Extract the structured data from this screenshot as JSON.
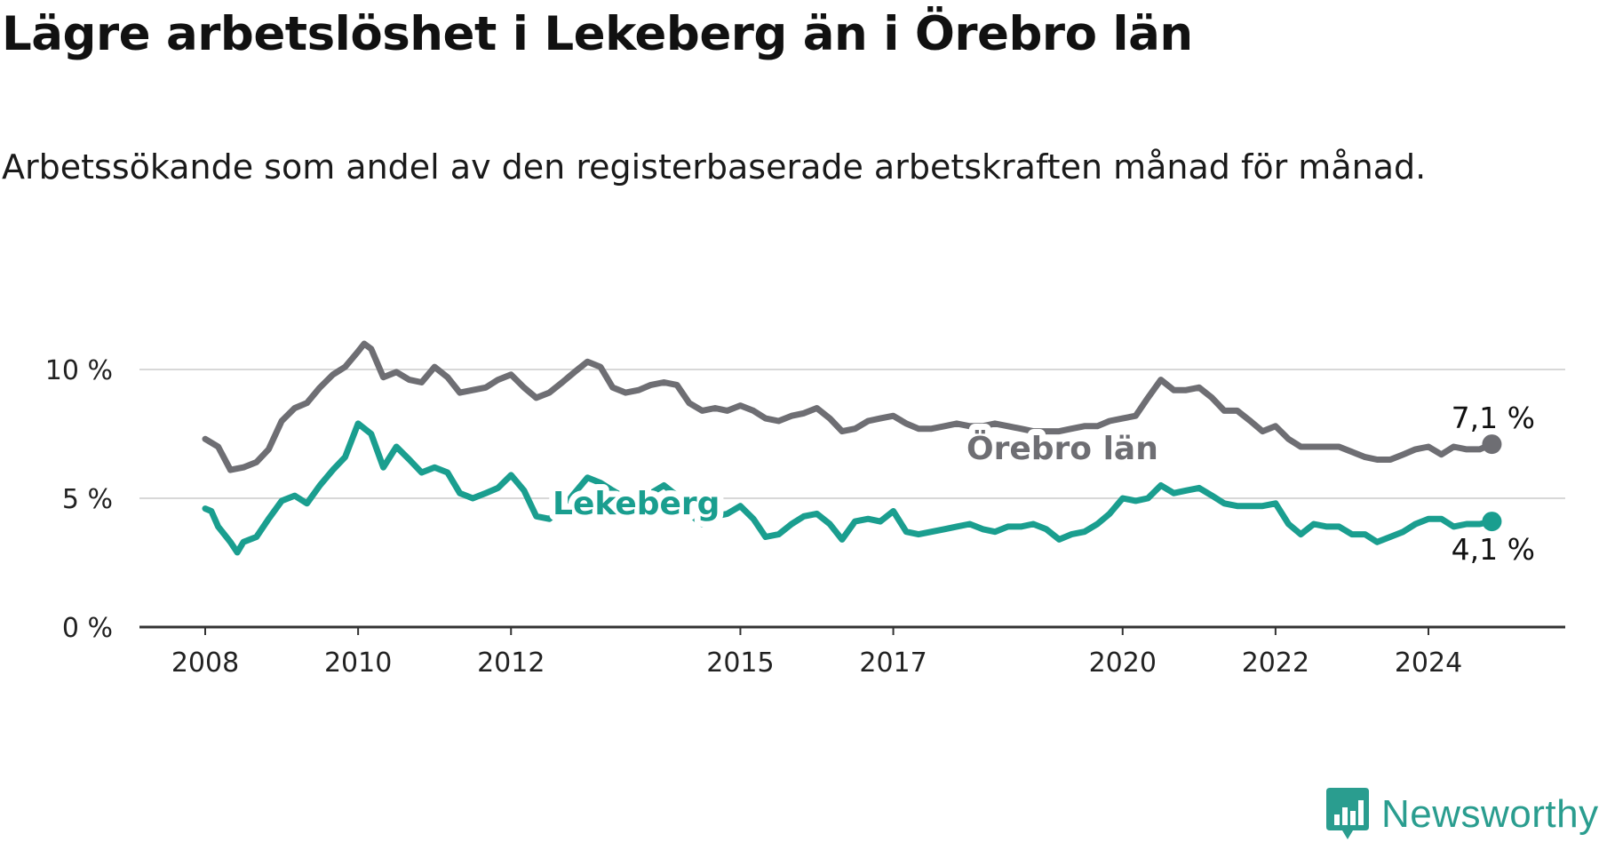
{
  "title": "Lägre arbetslöshet i Lekeberg än i Örebro län",
  "subtitle": "Arbetssökande som andel av den registerbaserade arbetskraften månad för månad.",
  "brand": "Newsworthy",
  "chart_data": {
    "type": "line",
    "title": "Lägre arbetslöshet i Lekeberg än i Örebro län",
    "subtitle": "Arbetssökande som andel av den registerbaserade arbetskraften månad för månad.",
    "xlabel": "",
    "ylabel": "",
    "ylim": [
      0,
      10.5
    ],
    "y_ticks": [
      0,
      5,
      10
    ],
    "y_tick_labels": [
      "0 %",
      "5 %",
      "10 %"
    ],
    "x_ticks": [
      2008,
      2010,
      2012,
      2015,
      2017,
      2020,
      2022,
      2024
    ],
    "x_tick_labels": [
      "2008",
      "2010",
      "2012",
      "2015",
      "2017",
      "2020",
      "2022",
      "2024"
    ],
    "grid": "horizontal",
    "legend": "inline labels",
    "series": [
      {
        "name": "Örebro län",
        "color": "#6e6e73",
        "end_label": "7,1 %",
        "points": [
          [
            2008.0,
            7.3
          ],
          [
            2008.17,
            7.0
          ],
          [
            2008.33,
            6.1
          ],
          [
            2008.5,
            6.2
          ],
          [
            2008.67,
            6.4
          ],
          [
            2008.83,
            6.9
          ],
          [
            2009.0,
            8.0
          ],
          [
            2009.17,
            8.5
          ],
          [
            2009.33,
            8.7
          ],
          [
            2009.5,
            9.3
          ],
          [
            2009.67,
            9.8
          ],
          [
            2009.83,
            10.1
          ],
          [
            2010.0,
            10.7
          ],
          [
            2010.08,
            11.0
          ],
          [
            2010.17,
            10.8
          ],
          [
            2010.33,
            9.7
          ],
          [
            2010.5,
            9.9
          ],
          [
            2010.67,
            9.6
          ],
          [
            2010.83,
            9.5
          ],
          [
            2011.0,
            10.1
          ],
          [
            2011.17,
            9.7
          ],
          [
            2011.33,
            9.1
          ],
          [
            2011.5,
            9.2
          ],
          [
            2011.67,
            9.3
          ],
          [
            2011.83,
            9.6
          ],
          [
            2012.0,
            9.8
          ],
          [
            2012.17,
            9.3
          ],
          [
            2012.33,
            8.9
          ],
          [
            2012.5,
            9.1
          ],
          [
            2012.67,
            9.5
          ],
          [
            2012.83,
            9.9
          ],
          [
            2013.0,
            10.3
          ],
          [
            2013.17,
            10.1
          ],
          [
            2013.33,
            9.3
          ],
          [
            2013.5,
            9.1
          ],
          [
            2013.67,
            9.2
          ],
          [
            2013.83,
            9.4
          ],
          [
            2014.0,
            9.5
          ],
          [
            2014.17,
            9.4
          ],
          [
            2014.33,
            8.7
          ],
          [
            2014.5,
            8.4
          ],
          [
            2014.67,
            8.5
          ],
          [
            2014.83,
            8.4
          ],
          [
            2015.0,
            8.6
          ],
          [
            2015.17,
            8.4
          ],
          [
            2015.33,
            8.1
          ],
          [
            2015.5,
            8.0
          ],
          [
            2015.67,
            8.2
          ],
          [
            2015.83,
            8.3
          ],
          [
            2016.0,
            8.5
          ],
          [
            2016.17,
            8.1
          ],
          [
            2016.33,
            7.6
          ],
          [
            2016.5,
            7.7
          ],
          [
            2016.67,
            8.0
          ],
          [
            2016.83,
            8.1
          ],
          [
            2017.0,
            8.2
          ],
          [
            2017.17,
            7.9
          ],
          [
            2017.33,
            7.7
          ],
          [
            2017.5,
            7.7
          ],
          [
            2017.67,
            7.8
          ],
          [
            2017.83,
            7.9
          ],
          [
            2018.0,
            7.8
          ],
          [
            2018.17,
            7.8
          ],
          [
            2018.33,
            7.9
          ],
          [
            2018.5,
            7.8
          ],
          [
            2018.67,
            7.7
          ],
          [
            2018.83,
            7.6
          ],
          [
            2019.0,
            7.6
          ],
          [
            2019.17,
            7.6
          ],
          [
            2019.33,
            7.7
          ],
          [
            2019.5,
            7.8
          ],
          [
            2019.67,
            7.8
          ],
          [
            2019.83,
            8.0
          ],
          [
            2020.0,
            8.1
          ],
          [
            2020.17,
            8.2
          ],
          [
            2020.33,
            8.9
          ],
          [
            2020.5,
            9.6
          ],
          [
            2020.67,
            9.2
          ],
          [
            2020.83,
            9.2
          ],
          [
            2021.0,
            9.3
          ],
          [
            2021.17,
            8.9
          ],
          [
            2021.33,
            8.4
          ],
          [
            2021.5,
            8.4
          ],
          [
            2021.67,
            8.0
          ],
          [
            2021.83,
            7.6
          ],
          [
            2022.0,
            7.8
          ],
          [
            2022.17,
            7.3
          ],
          [
            2022.33,
            7.0
          ],
          [
            2022.5,
            7.0
          ],
          [
            2022.67,
            7.0
          ],
          [
            2022.83,
            7.0
          ],
          [
            2023.0,
            6.8
          ],
          [
            2023.17,
            6.6
          ],
          [
            2023.33,
            6.5
          ],
          [
            2023.5,
            6.5
          ],
          [
            2023.67,
            6.7
          ],
          [
            2023.83,
            6.9
          ],
          [
            2024.0,
            7.0
          ],
          [
            2024.17,
            6.7
          ],
          [
            2024.33,
            7.0
          ],
          [
            2024.5,
            6.9
          ],
          [
            2024.67,
            6.9
          ],
          [
            2024.83,
            7.1
          ]
        ]
      },
      {
        "name": "Lekeberg",
        "color": "#1a9e8f",
        "end_label": "4,1 %",
        "points": [
          [
            2008.0,
            4.6
          ],
          [
            2008.08,
            4.5
          ],
          [
            2008.17,
            3.9
          ],
          [
            2008.33,
            3.3
          ],
          [
            2008.42,
            2.9
          ],
          [
            2008.5,
            3.3
          ],
          [
            2008.67,
            3.5
          ],
          [
            2008.83,
            4.2
          ],
          [
            2009.0,
            4.9
          ],
          [
            2009.17,
            5.1
          ],
          [
            2009.33,
            4.8
          ],
          [
            2009.5,
            5.5
          ],
          [
            2009.67,
            6.1
          ],
          [
            2009.83,
            6.6
          ],
          [
            2010.0,
            7.9
          ],
          [
            2010.17,
            7.5
          ],
          [
            2010.33,
            6.2
          ],
          [
            2010.5,
            7.0
          ],
          [
            2010.67,
            6.5
          ],
          [
            2010.83,
            6.0
          ],
          [
            2011.0,
            6.2
          ],
          [
            2011.17,
            6.0
          ],
          [
            2011.33,
            5.2
          ],
          [
            2011.5,
            5.0
          ],
          [
            2011.67,
            5.2
          ],
          [
            2011.83,
            5.4
          ],
          [
            2012.0,
            5.9
          ],
          [
            2012.17,
            5.3
          ],
          [
            2012.33,
            4.3
          ],
          [
            2012.5,
            4.2
          ],
          [
            2012.67,
            4.6
          ],
          [
            2012.83,
            5.2
          ],
          [
            2013.0,
            5.8
          ],
          [
            2013.17,
            5.6
          ],
          [
            2013.33,
            5.3
          ],
          [
            2013.5,
            5.0
          ],
          [
            2013.67,
            5.0
          ],
          [
            2013.83,
            5.2
          ],
          [
            2014.0,
            5.5
          ],
          [
            2014.17,
            5.1
          ],
          [
            2014.33,
            4.4
          ],
          [
            2014.5,
            4.0
          ],
          [
            2014.67,
            4.3
          ],
          [
            2014.83,
            4.4
          ],
          [
            2015.0,
            4.7
          ],
          [
            2015.17,
            4.2
          ],
          [
            2015.33,
            3.5
          ],
          [
            2015.5,
            3.6
          ],
          [
            2015.67,
            4.0
          ],
          [
            2015.83,
            4.3
          ],
          [
            2016.0,
            4.4
          ],
          [
            2016.17,
            4.0
          ],
          [
            2016.33,
            3.4
          ],
          [
            2016.5,
            4.1
          ],
          [
            2016.67,
            4.2
          ],
          [
            2016.83,
            4.1
          ],
          [
            2017.0,
            4.5
          ],
          [
            2017.17,
            3.7
          ],
          [
            2017.33,
            3.6
          ],
          [
            2017.5,
            3.7
          ],
          [
            2017.67,
            3.8
          ],
          [
            2017.83,
            3.9
          ],
          [
            2018.0,
            4.0
          ],
          [
            2018.17,
            3.8
          ],
          [
            2018.33,
            3.7
          ],
          [
            2018.5,
            3.9
          ],
          [
            2018.67,
            3.9
          ],
          [
            2018.83,
            4.0
          ],
          [
            2019.0,
            3.8
          ],
          [
            2019.17,
            3.4
          ],
          [
            2019.33,
            3.6
          ],
          [
            2019.5,
            3.7
          ],
          [
            2019.67,
            4.0
          ],
          [
            2019.83,
            4.4
          ],
          [
            2020.0,
            5.0
          ],
          [
            2020.17,
            4.9
          ],
          [
            2020.33,
            5.0
          ],
          [
            2020.5,
            5.5
          ],
          [
            2020.67,
            5.2
          ],
          [
            2020.83,
            5.3
          ],
          [
            2021.0,
            5.4
          ],
          [
            2021.17,
            5.1
          ],
          [
            2021.33,
            4.8
          ],
          [
            2021.5,
            4.7
          ],
          [
            2021.67,
            4.7
          ],
          [
            2021.83,
            4.7
          ],
          [
            2022.0,
            4.8
          ],
          [
            2022.17,
            4.0
          ],
          [
            2022.33,
            3.6
          ],
          [
            2022.5,
            4.0
          ],
          [
            2022.67,
            3.9
          ],
          [
            2022.83,
            3.9
          ],
          [
            2023.0,
            3.6
          ],
          [
            2023.17,
            3.6
          ],
          [
            2023.33,
            3.3
          ],
          [
            2023.5,
            3.5
          ],
          [
            2023.67,
            3.7
          ],
          [
            2023.83,
            4.0
          ],
          [
            2024.0,
            4.2
          ],
          [
            2024.17,
            4.2
          ],
          [
            2024.33,
            3.9
          ],
          [
            2024.5,
            4.0
          ],
          [
            2024.67,
            4.0
          ],
          [
            2024.83,
            4.1
          ]
        ]
      }
    ]
  }
}
